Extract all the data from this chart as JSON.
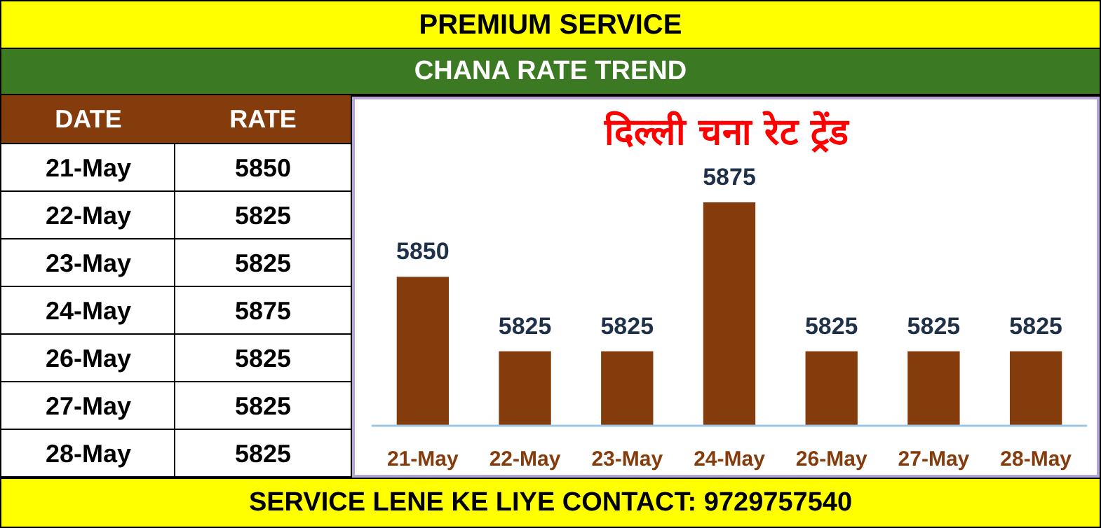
{
  "chart_data": [
    {
      "type": "other",
      "categories": [
        "21-May",
        "22-May",
        "23-May",
        "24-May",
        "26-May",
        "27-May",
        "28-May"
      ],
      "values": [
        5850,
        5825,
        5825,
        5875,
        5825,
        5825,
        5825
      ],
      "data_labels": true,
      "annotations": [
        "DATE",
        "RATE"
      ]
    },
    {
      "type": "bar",
      "title": "दिल्ली चना रेट ट्रेंड",
      "subtitle": "CHANA RATE TREND",
      "categories": [
        "21-May",
        "22-May",
        "23-May",
        "24-May",
        "26-May",
        "27-May",
        "28-May"
      ],
      "values": [
        5850,
        5825,
        5825,
        5875,
        5825,
        5825,
        5825
      ],
      "color": "#843c0c",
      "ylim": [
        5800,
        5910
      ],
      "data_labels": true,
      "annotations": [
        "PREMIUM SERVICE",
        "SERVICE LENE KE LIYE CONTACT: 9729757540"
      ]
    }
  ]
}
